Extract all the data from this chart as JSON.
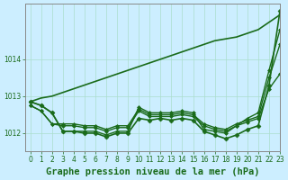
{
  "title": "Graphe pression niveau de la mer (hPa)",
  "background_color": "#cceeff",
  "grid_color": "#aaddcc",
  "line_color": "#1a6b1a",
  "xlim": [
    -0.5,
    23
  ],
  "ylim": [
    1011.5,
    1015.5
  ],
  "yticks": [
    1012,
    1013,
    1014
  ],
  "xticks": [
    0,
    1,
    2,
    3,
    4,
    5,
    6,
    7,
    8,
    9,
    10,
    11,
    12,
    13,
    14,
    15,
    16,
    17,
    18,
    19,
    20,
    21,
    22,
    23
  ],
  "series": [
    {
      "x": [
        0,
        1,
        2,
        3,
        4,
        5,
        6,
        7,
        8,
        9,
        10,
        11,
        12,
        13,
        14,
        15,
        16,
        17,
        18,
        19,
        20,
        21,
        22,
        23
      ],
      "y": [
        1012.85,
        1012.95,
        1013.0,
        1013.1,
        1013.2,
        1013.3,
        1013.4,
        1013.5,
        1013.6,
        1013.7,
        1013.8,
        1013.9,
        1014.0,
        1014.1,
        1014.2,
        1014.3,
        1014.4,
        1014.5,
        1014.55,
        1014.6,
        1014.7,
        1014.8,
        1015.0,
        1015.2
      ],
      "marker": null,
      "markersize": 0,
      "linewidth": 1.2
    },
    {
      "x": [
        0,
        1,
        2,
        3,
        4,
        5,
        6,
        7,
        8,
        9,
        10,
        11,
        12,
        13,
        14,
        15,
        16,
        17,
        18,
        19,
        20,
        21,
        22,
        23
      ],
      "y": [
        1012.85,
        1012.75,
        1012.55,
        1012.05,
        1012.05,
        1012.0,
        1012.0,
        1011.9,
        1012.0,
        1012.0,
        1012.4,
        1012.35,
        1012.4,
        1012.35,
        1012.4,
        1012.35,
        1012.05,
        1011.95,
        1011.85,
        1011.95,
        1012.1,
        1012.2,
        1013.3,
        1015.3
      ],
      "marker": "D",
      "markersize": 2.5,
      "linewidth": 1.2
    },
    {
      "x": [
        0,
        1,
        2,
        3,
        4,
        5,
        6,
        7,
        8,
        9,
        10,
        11,
        12,
        13,
        14,
        15,
        16,
        17,
        18,
        19,
        20,
        21,
        22,
        23
      ],
      "y": [
        1012.75,
        1012.6,
        1012.25,
        1012.25,
        1012.25,
        1012.2,
        1012.2,
        1012.1,
        1012.2,
        1012.2,
        1012.65,
        1012.5,
        1012.5,
        1012.5,
        1012.55,
        1012.5,
        1012.25,
        1012.15,
        1012.1,
        1012.25,
        1012.35,
        1012.45,
        1013.5,
        1014.4
      ],
      "marker": "D",
      "markersize": 2,
      "linewidth": 1.0
    },
    {
      "x": [
        0,
        1,
        2,
        3,
        4,
        5,
        6,
        7,
        8,
        9,
        10,
        11,
        12,
        13,
        14,
        15,
        16,
        17,
        18,
        19,
        20,
        21,
        22,
        23
      ],
      "y": [
        1012.75,
        1012.6,
        1012.25,
        1012.2,
        1012.2,
        1012.15,
        1012.15,
        1012.05,
        1012.15,
        1012.15,
        1012.6,
        1012.45,
        1012.45,
        1012.45,
        1012.5,
        1012.45,
        1012.2,
        1012.1,
        1012.05,
        1012.2,
        1012.3,
        1012.4,
        1013.2,
        1013.6
      ],
      "marker": "D",
      "markersize": 2,
      "linewidth": 1.0
    },
    {
      "x": [
        0,
        1,
        2,
        3,
        4,
        5,
        6,
        7,
        8,
        9,
        10,
        11,
        12,
        13,
        14,
        15,
        16,
        17,
        18,
        19,
        20,
        21,
        22,
        23
      ],
      "y": [
        1012.85,
        1012.75,
        1012.55,
        1012.05,
        1012.05,
        1012.05,
        1012.05,
        1011.95,
        1012.05,
        1012.05,
        1012.7,
        1012.55,
        1012.55,
        1012.55,
        1012.6,
        1012.55,
        1012.1,
        1012.05,
        1012.0,
        1012.2,
        1012.4,
        1012.55,
        1013.7,
        1014.8
      ],
      "marker": "D",
      "markersize": 2,
      "linewidth": 1.0
    }
  ],
  "title_fontsize": 7.5,
  "tick_fontsize": 5.5,
  "tick_color": "#1a6b1a",
  "axis_color": "#888888",
  "ylabel_color": "#1a6b1a"
}
